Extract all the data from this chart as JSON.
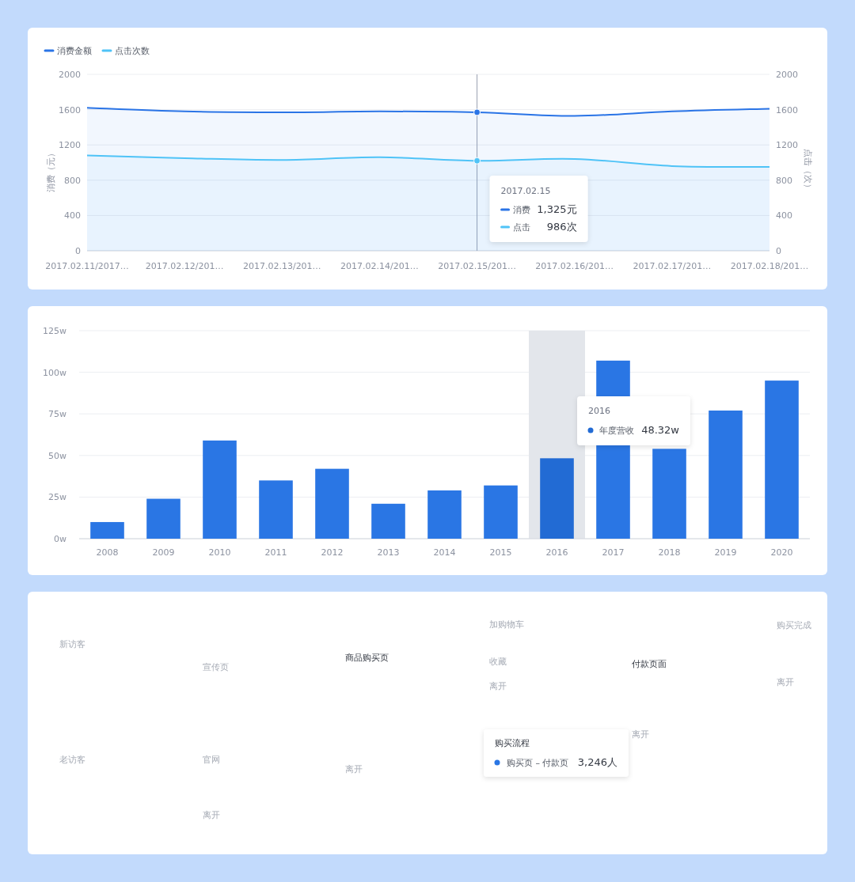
{
  "chart_data": [
    {
      "type": "area",
      "categories": [
        "2017.02.11/2017…",
        "2017.02.12/201…",
        "2017.02.13/201…",
        "2017.02.14/201…",
        "2017.02.15/201…",
        "2017.02.16/201…",
        "2017.02.17/201…",
        "2017.02.18/201…"
      ],
      "series": [
        {
          "name": "消费金额",
          "color": "#2a74e6",
          "values": [
            1620,
            1580,
            1570,
            1580,
            1570,
            1530,
            1580,
            1610
          ]
        },
        {
          "name": "点击次数",
          "color": "#4fc3f7",
          "values": [
            1080,
            1050,
            1030,
            1060,
            1020,
            1040,
            960,
            950
          ]
        }
      ],
      "ylabel": "消费（元）",
      "y2label": "点击（次）",
      "ylim": [
        0,
        2000
      ],
      "yticks": [
        0,
        400,
        800,
        1200,
        1600,
        2000
      ],
      "y2lim": [
        0,
        2000
      ],
      "y2ticks": [
        0,
        400,
        800,
        1200,
        1600,
        2000
      ],
      "grid": "y",
      "legend": "top left",
      "ref_lines": [
        {
          "axis": "x",
          "value": "2017.02.15/201…",
          "color": "#9aa0b0"
        }
      ],
      "annotations": [
        "2017.02.15",
        "消费",
        "1,325元",
        "点击",
        "986次"
      ]
    },
    {
      "type": "bar",
      "categories": [
        "2008",
        "2009",
        "2010",
        "2011",
        "2012",
        "2013",
        "2014",
        "2015",
        "2016",
        "2017",
        "2018",
        "2019",
        "2020"
      ],
      "values": [
        10,
        24,
        59,
        35,
        42,
        21,
        29,
        32,
        48.32,
        107,
        54,
        77,
        95
      ],
      "colors": [
        "#2a76e4",
        "#2a76e4",
        "#2a76e4",
        "#2a76e4",
        "#2a76e4",
        "#2a76e4",
        "#2a76e4",
        "#2a76e4",
        "#226bd4",
        "#2a76e4",
        "#2a76e4",
        "#2a76e4",
        "#2a76e4"
      ],
      "ylim": [
        0,
        125
      ],
      "yticks": [
        {
          "value": 0,
          "label": "0w"
        },
        {
          "value": 25,
          "label": "25w"
        },
        {
          "value": 50,
          "label": "50w"
        },
        {
          "value": 75,
          "label": "75w"
        },
        {
          "value": 100,
          "label": "100w"
        },
        {
          "value": 125,
          "label": "125w"
        }
      ],
      "grid": "y",
      "bands": [
        {
          "axis": "x",
          "from": "2016",
          "to": "2016",
          "color": "#e3e6eb"
        }
      ],
      "annotations": [
        "2016",
        "年度营收",
        "48.32w"
      ]
    },
    {
      "type": "other",
      "annotations": [
        "新访客",
        "老访客",
        "宣传页",
        "官网",
        "离开",
        "商品购买页",
        "离开",
        "加购物车",
        "收藏",
        "离开",
        "付款页面",
        "离开",
        "购买完成",
        "离开",
        "购买流程",
        "购买页 – 付款页",
        "3,246人"
      ]
    }
  ]
}
